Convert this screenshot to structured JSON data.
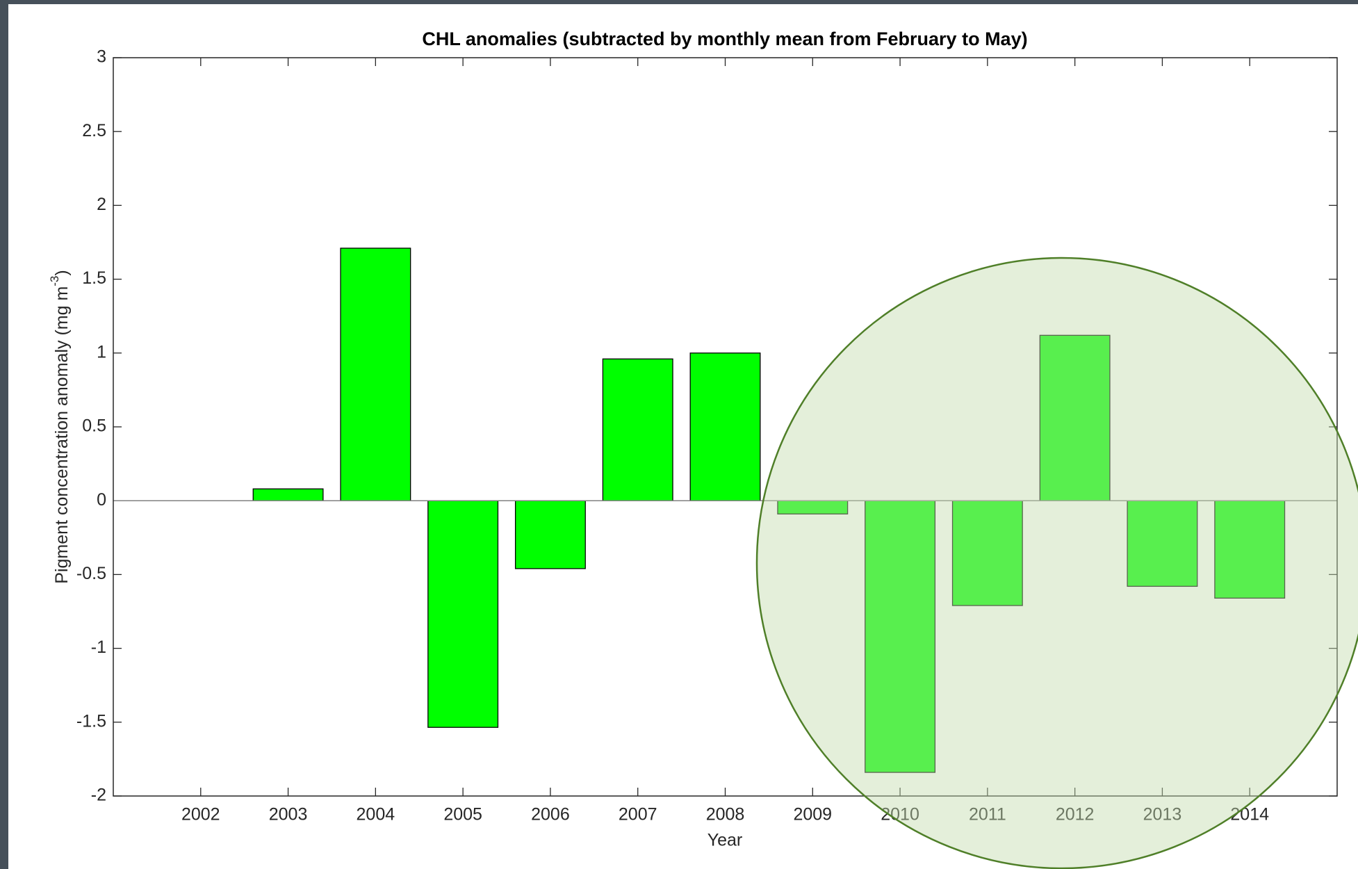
{
  "chart_data": {
    "type": "bar",
    "title": "CHL anomalies (subtracted by monthly mean from February to May)",
    "x_label": "Year",
    "y_label": {
      "text": "Pigment concentration anomaly (mg m",
      "superscript": "-3",
      "suffix": ")"
    },
    "x": [
      2002,
      2003,
      2004,
      2005,
      2006,
      2007,
      2008,
      2009,
      2010,
      2011,
      2012,
      2013,
      2014
    ],
    "values": [
      0,
      0.08,
      1.71,
      -1.535,
      -0.46,
      0.96,
      1.0,
      -0.09,
      -1.84,
      -0.71,
      1.12,
      -0.58,
      -0.66
    ],
    "color": "#00ff00",
    "xlim": [
      2001,
      2015
    ],
    "xticks": [
      2002,
      2003,
      2004,
      2005,
      2006,
      2007,
      2008,
      2009,
      2010,
      2011,
      2012,
      2013,
      2014
    ],
    "ylim": [
      -2,
      3
    ],
    "yticks": [
      -2,
      -1.5,
      -1,
      -0.5,
      0,
      0.5,
      1,
      1.5,
      2,
      2.5,
      3
    ]
  }
}
